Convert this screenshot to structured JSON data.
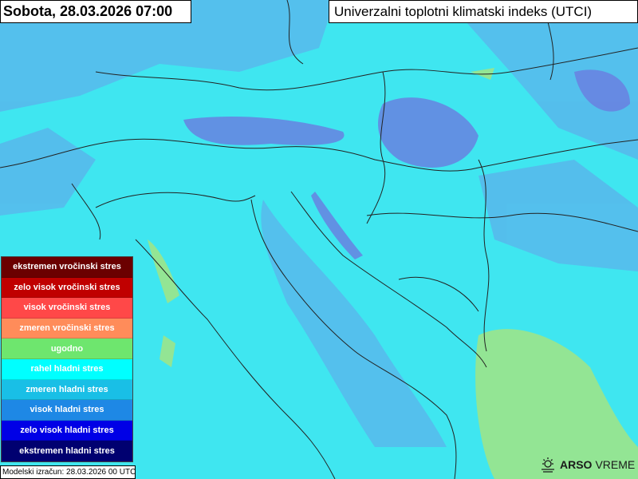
{
  "header": {
    "date_title": "Sobota, 28.03.2026 07:00",
    "map_title": "Univerzalni toplotni klimatski indeks (UTCI)"
  },
  "legend": {
    "items": [
      {
        "label": "ekstremen vročinski stres",
        "color": "#6b0000"
      },
      {
        "label": "zelo visok vročinski stres",
        "color": "#c00000"
      },
      {
        "label": "visok vročinski stres",
        "color": "#ff4848"
      },
      {
        "label": "zmeren vročinski stres",
        "color": "#ff8c5a"
      },
      {
        "label": "ugodno",
        "color": "#6ee66e"
      },
      {
        "label": "rahel hladni stres",
        "color": "#00ffff"
      },
      {
        "label": "zmeren hladni stres",
        "color": "#19bfe6"
      },
      {
        "label": "visok hladni stres",
        "color": "#1e88e5"
      },
      {
        "label": "zelo visok hladni stres",
        "color": "#0000e6"
      },
      {
        "label": "ekstremen hladni stres",
        "color": "#000070"
      }
    ]
  },
  "footer": {
    "model_note": "Modelski izračun: 28.03.2026 00 UTC",
    "logo_bold": "ARSO",
    "logo_light": "VREME"
  },
  "map": {
    "dominant_class": "rahel hladni stres",
    "colors": {
      "sea": "#4fd8f0",
      "land": "#3fe6f0",
      "moderate_cold": "#5aa8e8",
      "high_cold": "#6a78e0",
      "comfortable": "#90e090"
    }
  }
}
